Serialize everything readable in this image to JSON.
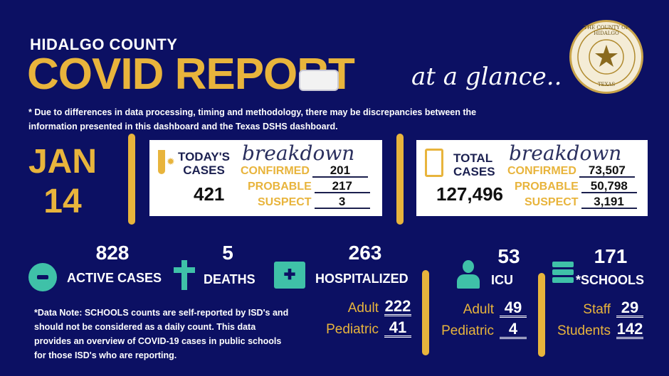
{
  "header": {
    "county": "HIDALGO COUNTY",
    "title": "COVID REPORT",
    "tagline": "at a glance..",
    "disclaimer": "* Due to differences in data processing, timing and methodology, there may be discrepancies between the information presented in this dashboard and the Texas DSHS dashboard."
  },
  "seal": {
    "text": "THE COUNTY OF HIDALGO",
    "state": "TEXAS"
  },
  "date": {
    "month": "JAN",
    "day": "14"
  },
  "today": {
    "label1": "TODAY'S",
    "label2": "CASES",
    "script": "breakdown",
    "total": "421",
    "confirmed_label": "CONFIRMED",
    "confirmed": "201",
    "probable_label": "PROBABLE",
    "probable": "217",
    "suspect_label": "SUSPECT",
    "suspect": "3"
  },
  "total": {
    "label1": "TOTAL",
    "label2": "CASES",
    "script": "breakdown",
    "total": "127,496",
    "confirmed_label": "CONFIRMED",
    "confirmed": "73,507",
    "probable_label": "PROBABLE",
    "probable": "50,798",
    "suspect_label": "SUSPECT",
    "suspect": "3,191"
  },
  "stats": {
    "active": {
      "value": "828",
      "label": "ACTIVE CASES"
    },
    "deaths": {
      "value": "5",
      "label": "DEATHS"
    },
    "hospitalized": {
      "value": "263",
      "label": "HOSPITALIZED",
      "adult_label": "Adult",
      "adult": "222",
      "pediatric_label": "Pediatric",
      "pediatric": "41"
    },
    "icu": {
      "value": "53",
      "label": "ICU",
      "adult_label": "Adult",
      "adult": "49",
      "pediatric_label": "Pediatric",
      "pediatric": "4"
    },
    "schools": {
      "value": "171",
      "label": "*SCHOOLS",
      "staff_label": "Staff",
      "staff": "29",
      "students_label": "Students",
      "students": "142"
    }
  },
  "note": "*Data Note: SCHOOLS counts are self-reported by ISD's and should not be considered as a daily count. This data provides an overview of COVID-19 cases in public schools for those ISD's who are reporting.",
  "colors": {
    "background": "#0c1063",
    "gold": "#e8b43c",
    "teal": "#3fc1a8"
  }
}
